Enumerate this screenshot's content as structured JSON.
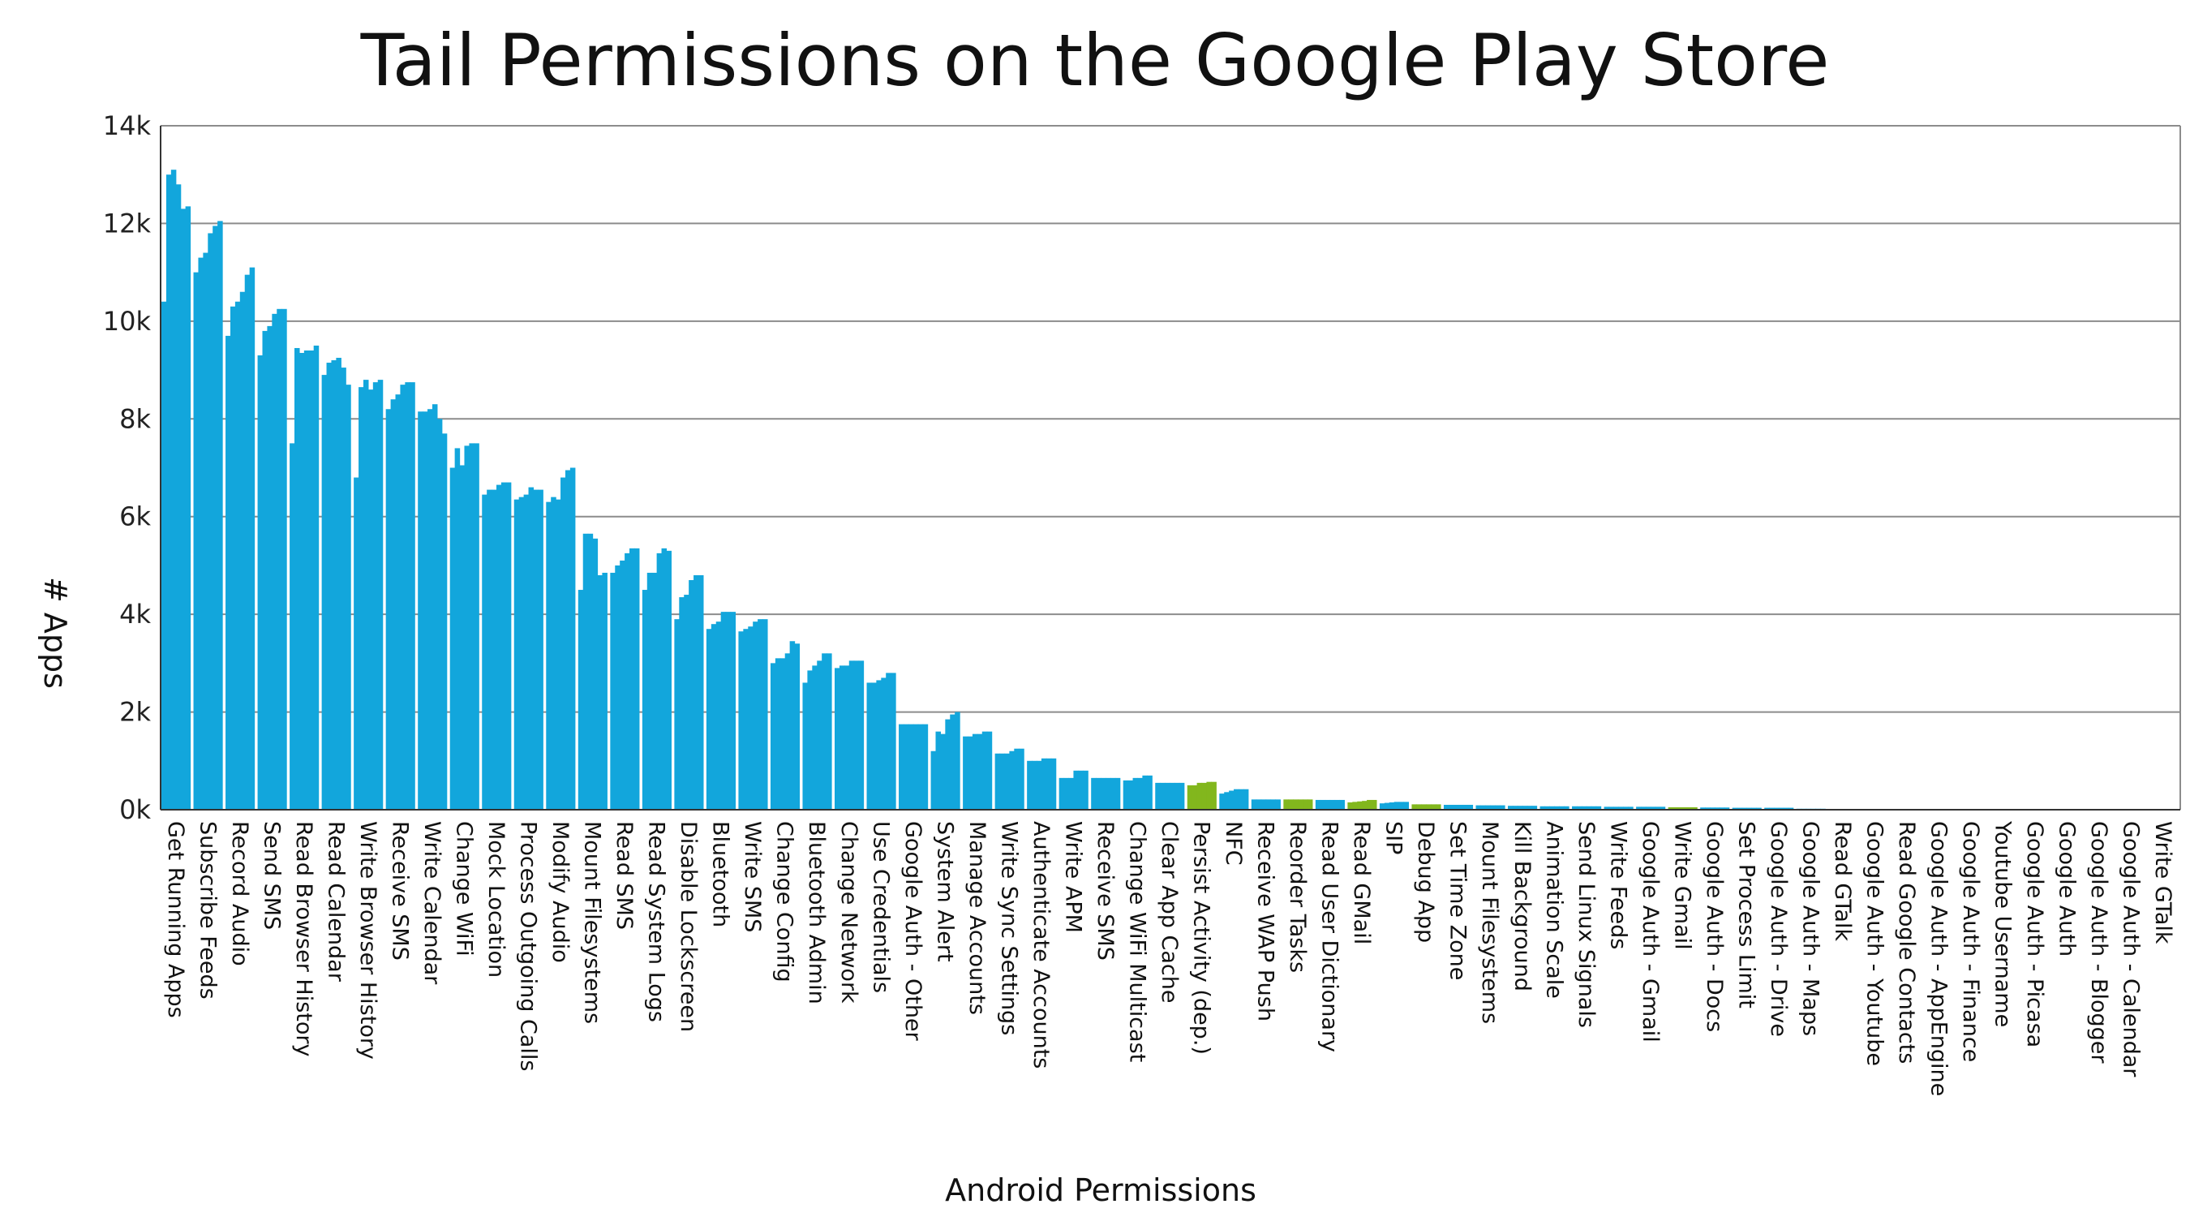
{
  "chart_data": {
    "type": "bar",
    "title": "Tail Permissions on the Google Play Store",
    "xlabel": "Android Permissions",
    "ylabel": "# Apps",
    "ylim": [
      0,
      14000
    ],
    "yticks": [
      0,
      2000,
      4000,
      6000,
      8000,
      10000,
      12000,
      14000
    ],
    "ytick_labels": [
      "0k",
      "2k",
      "4k",
      "6k",
      "8k",
      "10k",
      "12k",
      "14k"
    ],
    "grid": true,
    "legend": "none",
    "colors": {
      "primary": "#12a6dc",
      "highlight": "#82b71d",
      "grid": "#8c8c8c",
      "axis": "#333333"
    },
    "categories": [
      "Get Running Apps",
      "Subscribe Feeds",
      "Record Audio",
      "Send SMS",
      "Read Browser History",
      "Read Calendar",
      "Write Browser History",
      "Receive SMS",
      "Write Calendar",
      "Change WiFi",
      "Mock Location",
      "Process Outgoing Calls",
      "Modify Audio",
      "Mount Filesystems",
      "Read SMS",
      "Read System Logs",
      "Disable Lockscreen",
      "Bluetooth",
      "Write SMS",
      "Change Config",
      "Bluetooth Admin",
      "Change Network",
      "Use Credentials",
      "Google Auth - Other",
      "System Alert",
      "Manage Accounts",
      "Write Sync Settings",
      "Authenticate Accounts",
      "Write APM",
      "Receive SMS",
      "Change WiFi Multicast",
      "Clear App Cache",
      "Persist Activity (dep.)",
      "NFC",
      "Receive WAP Push",
      "Reorder Tasks",
      "Read User Dictionary",
      "Read GMail",
      "SIP",
      "Debug App",
      "Set Time Zone",
      "Mount Filesystems",
      "Kill Background",
      "Animation Scale",
      "Send Linux Signals",
      "Write Feeds",
      "Google Auth - Gmail",
      "Write Gmail",
      "Google Auth - Docs",
      "Set Process Limit",
      "Google Auth - Drive",
      "Google Auth - Maps",
      "Read GTalk",
      "Google Auth - Youtube",
      "Read Google Contacts",
      "Google Auth - AppEngine",
      "Google Auth - Finance",
      "Youtube Username",
      "Google Auth - Picasa",
      "Google Auth",
      "Google Auth - Blogger",
      "Google Auth - Calendar",
      "Write GTalk"
    ],
    "highlight": [
      false,
      false,
      false,
      false,
      false,
      false,
      false,
      false,
      false,
      false,
      false,
      false,
      false,
      false,
      false,
      false,
      false,
      false,
      false,
      false,
      false,
      false,
      false,
      false,
      false,
      false,
      false,
      false,
      false,
      false,
      false,
      false,
      true,
      false,
      false,
      true,
      false,
      true,
      false,
      true,
      false,
      false,
      false,
      false,
      false,
      false,
      false,
      true,
      false,
      false,
      false,
      false,
      false,
      false,
      false,
      false,
      false,
      false,
      false,
      false,
      false,
      false,
      false
    ],
    "values": [
      [
        10400,
        13000,
        13100,
        12800,
        12300,
        12350
      ],
      [
        11000,
        11300,
        11400,
        11800,
        11950,
        12050
      ],
      [
        9700,
        10300,
        10400,
        10600,
        10950,
        11100
      ],
      [
        9300,
        9800,
        9900,
        10150,
        10250,
        10250
      ],
      [
        7500,
        9450,
        9350,
        9400,
        9400,
        9500
      ],
      [
        8900,
        9150,
        9200,
        9250,
        9050,
        8700
      ],
      [
        6800,
        8650,
        8800,
        8600,
        8750,
        8800
      ],
      [
        8200,
        8400,
        8500,
        8700,
        8750,
        8750
      ],
      [
        8150,
        8150,
        8200,
        8300,
        8000,
        7700
      ],
      [
        7000,
        7400,
        7050,
        7450,
        7500,
        7500
      ],
      [
        6450,
        6550,
        6550,
        6650,
        6700,
        6700
      ],
      [
        6350,
        6400,
        6450,
        6600,
        6550,
        6550
      ],
      [
        6300,
        6400,
        6350,
        6800,
        6950,
        7000
      ],
      [
        4500,
        5650,
        5650,
        5550,
        4800,
        4850
      ],
      [
        4850,
        5000,
        5100,
        5250,
        5350,
        5350
      ],
      [
        4500,
        4850,
        4850,
        5250,
        5350,
        5300
      ],
      [
        3900,
        4350,
        4400,
        4700,
        4800,
        4800
      ],
      [
        3700,
        3800,
        3850,
        4050,
        4050,
        4050
      ],
      [
        3650,
        3700,
        3750,
        3850,
        3900,
        3900
      ],
      [
        3000,
        3100,
        3100,
        3200,
        3450,
        3400
      ],
      [
        2600,
        2850,
        2950,
        3050,
        3200,
        3200
      ],
      [
        2900,
        2950,
        2950,
        3050,
        3050,
        3050
      ],
      [
        2600,
        2600,
        2650,
        2700,
        2800,
        2800
      ],
      [
        1750,
        1750,
        1750,
        1750,
        1750,
        1750
      ],
      [
        1200,
        1600,
        1550,
        1850,
        1950,
        2000
      ],
      [
        1500,
        1500,
        1550,
        1550,
        1600,
        1600
      ],
      [
        1150,
        1150,
        1150,
        1200,
        1250,
        1250
      ],
      [
        1000,
        1000,
        1000,
        1050,
        1050,
        1050
      ],
      [
        650,
        650,
        650,
        800,
        800,
        800
      ],
      [
        650,
        650,
        650,
        650,
        650,
        650
      ],
      [
        600,
        600,
        650,
        650,
        700,
        700
      ],
      [
        550,
        550,
        550,
        550,
        550,
        550
      ],
      [
        500,
        500,
        550,
        550,
        570,
        570
      ],
      [
        330,
        360,
        390,
        420,
        420,
        420
      ],
      [
        210,
        210,
        210,
        210,
        210,
        210
      ],
      [
        210,
        210,
        210,
        210,
        210,
        210
      ],
      [
        200,
        200,
        200,
        200,
        200,
        200
      ],
      [
        150,
        160,
        170,
        180,
        200,
        200
      ],
      [
        130,
        140,
        150,
        160,
        160,
        160
      ],
      [
        110,
        110,
        110,
        110,
        110,
        110
      ],
      [
        100,
        100,
        100,
        100,
        100,
        100
      ],
      [
        90,
        90,
        90,
        90,
        90,
        90
      ],
      [
        80,
        80,
        80,
        80,
        80,
        80
      ],
      [
        70,
        70,
        70,
        70,
        70,
        70
      ],
      [
        70,
        70,
        70,
        70,
        70,
        70
      ],
      [
        60,
        60,
        60,
        60,
        60,
        60
      ],
      [
        60,
        60,
        60,
        60,
        60,
        60
      ],
      [
        50,
        50,
        50,
        50,
        50,
        50
      ],
      [
        45,
        45,
        45,
        45,
        45,
        45
      ],
      [
        40,
        40,
        40,
        40,
        40,
        40
      ],
      [
        40,
        40,
        40,
        40,
        40,
        40
      ],
      [
        20,
        20,
        20,
        20,
        20,
        20
      ],
      [
        15,
        15,
        15,
        15,
        15,
        15
      ],
      [
        12,
        12,
        12,
        12,
        12,
        12
      ],
      [
        10,
        10,
        10,
        10,
        10,
        10
      ],
      [
        8,
        8,
        8,
        8,
        8,
        8
      ],
      [
        7,
        7,
        7,
        7,
        7,
        7
      ],
      [
        6,
        6,
        6,
        6,
        6,
        6
      ],
      [
        5,
        5,
        5,
        5,
        5,
        5
      ],
      [
        4,
        4,
        4,
        4,
        4,
        4
      ],
      [
        3,
        3,
        3,
        3,
        3,
        3
      ],
      [
        2,
        2,
        2,
        2,
        2,
        2
      ],
      [
        1,
        1,
        1,
        1,
        1,
        1
      ]
    ]
  }
}
